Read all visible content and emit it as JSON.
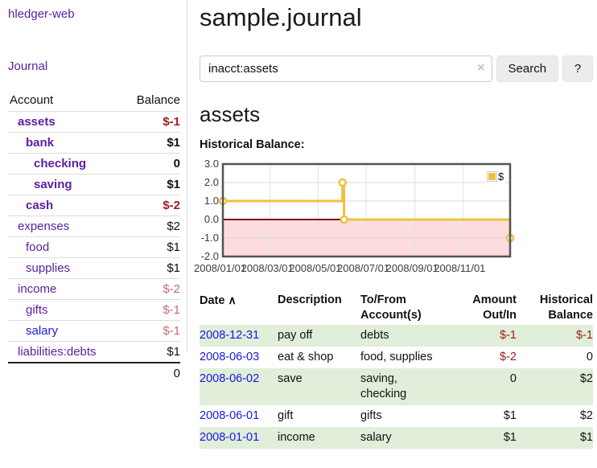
{
  "colors": {
    "link_purple": "#5a1ea0",
    "link_blue": "#1b16e0",
    "negative_red": "#9e1a1a",
    "negative_muted": "#c86a72",
    "row_stripe_green": "#e0eeda",
    "chart_series_yellow": "#edc240",
    "chart_negative_fill": "#fcdcdc",
    "chart_zero_line": "#8b0000",
    "chart_border": "#545454"
  },
  "sidebar": {
    "brand": "hledger-web",
    "nav": {
      "journal": "Journal"
    },
    "accounts": {
      "col_account": "Account",
      "col_balance": "Balance",
      "rows": [
        {
          "name": "assets",
          "balance": "$-1"
        },
        {
          "name": "bank",
          "balance": "$1"
        },
        {
          "name": "checking",
          "balance": "0"
        },
        {
          "name": "saving",
          "balance": "$1"
        },
        {
          "name": "cash",
          "balance": "$-2"
        },
        {
          "name": "expenses",
          "balance": "$2"
        },
        {
          "name": "food",
          "balance": "$1"
        },
        {
          "name": "supplies",
          "balance": "$1"
        },
        {
          "name": "income",
          "balance": "$-2"
        },
        {
          "name": "gifts",
          "balance": "$-1"
        },
        {
          "name": "salary",
          "balance": "$-1"
        },
        {
          "name": "liabilities:debts",
          "balance": "$1"
        }
      ],
      "total": "0"
    }
  },
  "main": {
    "title": "sample.journal",
    "search": {
      "value": "inacct:assets",
      "clear_icon": "×",
      "search_button": "Search",
      "help_button": "?"
    },
    "account_heading": "assets",
    "chart_label": "Historical Balance:"
  },
  "chart_data": {
    "type": "line",
    "step": true,
    "title": "",
    "xlabel": "",
    "ylabel": "",
    "legend_position": "top-right",
    "grid": true,
    "x_range": [
      "2008/01/01",
      "2008/12/31"
    ],
    "ylim": [
      -2,
      3
    ],
    "y_ticks": [
      3.0,
      2.0,
      1.0,
      0.0,
      -1.0,
      -2.0
    ],
    "x_ticks": [
      "2008/01/01",
      "2008/03/01",
      "2008/05/01",
      "2008/07/01",
      "2008/09/01",
      "2008/11/01"
    ],
    "series": [
      {
        "name": "$",
        "color": "#edc240",
        "points": [
          {
            "date": "2008/01/01",
            "value": 1
          },
          {
            "date": "2008/06/01",
            "value": 2
          },
          {
            "date": "2008/06/03",
            "value": 0
          },
          {
            "date": "2008/12/31",
            "value": -1
          }
        ]
      }
    ]
  },
  "register": {
    "headers": {
      "date": "Date",
      "sort_icon": "∧",
      "description": "Description",
      "account": "To/From Account(s)",
      "amount": "Amount Out/In",
      "balance": "Historical Balance"
    },
    "rows": [
      {
        "date": "2008-12-31",
        "description": "pay off",
        "account": "debts",
        "amount": "$-1",
        "balance": "$-1"
      },
      {
        "date": "2008-06-03",
        "description": "eat & shop",
        "account": "food, supplies",
        "amount": "$-2",
        "balance": "0"
      },
      {
        "date": "2008-06-02",
        "description": "save",
        "account": "saving, checking",
        "amount": "0",
        "balance": "$2"
      },
      {
        "date": "2008-06-01",
        "description": "gift",
        "account": "gifts",
        "amount": "$1",
        "balance": "$2"
      },
      {
        "date": "2008-01-01",
        "description": "income",
        "account": "salary",
        "amount": "$1",
        "balance": "$1"
      }
    ]
  }
}
